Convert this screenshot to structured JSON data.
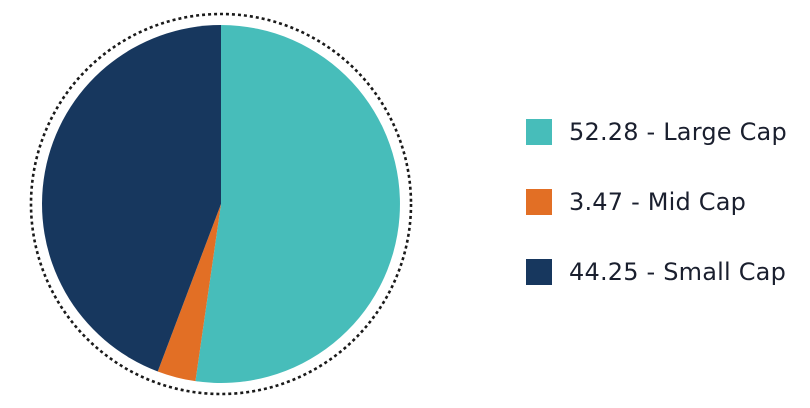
{
  "chart_data": {
    "type": "pie",
    "title": "",
    "start_angle_deg": 0,
    "direction": "clockwise",
    "border": "dotted-ring",
    "legend_position": "right",
    "slices": [
      {
        "label": "52.28 - Large Cap",
        "value": 52.28,
        "color": "#47BDBA"
      },
      {
        "label": "3.47 - Mid Cap",
        "value": 3.47,
        "color": "#E26F25"
      },
      {
        "label": "44.25 - Small Cap",
        "value": 44.25,
        "color": "#17375E"
      }
    ]
  }
}
